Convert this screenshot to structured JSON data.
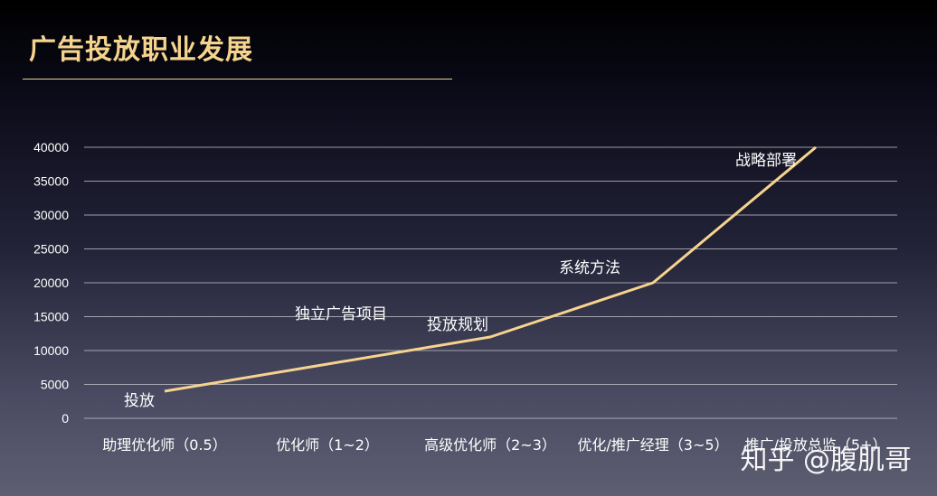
{
  "slide": {
    "title": "广告投放职业发展",
    "watermark": "知乎 @腹肌哥"
  },
  "colors": {
    "title": "#f6d48e",
    "line": "#f6d48e",
    "grid": "#c8c8d0",
    "text": "#ffffff"
  },
  "chart_data": {
    "type": "line",
    "categories": [
      "助理优化师（0.5）",
      "优化师（1~2）",
      "高级优化师（2~3）",
      "优化/推广经理（3~5）",
      "推广/投放总监（5+）"
    ],
    "series": [
      {
        "values": [
          4000,
          8000,
          12000,
          20000,
          40000
        ]
      }
    ],
    "point_labels": [
      "投放",
      "独立广告项目",
      "投放规划",
      "系统方法",
      "战略部署"
    ],
    "yticks": [
      0,
      5000,
      10000,
      15000,
      20000,
      25000,
      30000,
      35000,
      40000
    ],
    "ylim": [
      0,
      40000
    ],
    "grid": true,
    "title": "",
    "xlabel": "",
    "ylabel": ""
  }
}
